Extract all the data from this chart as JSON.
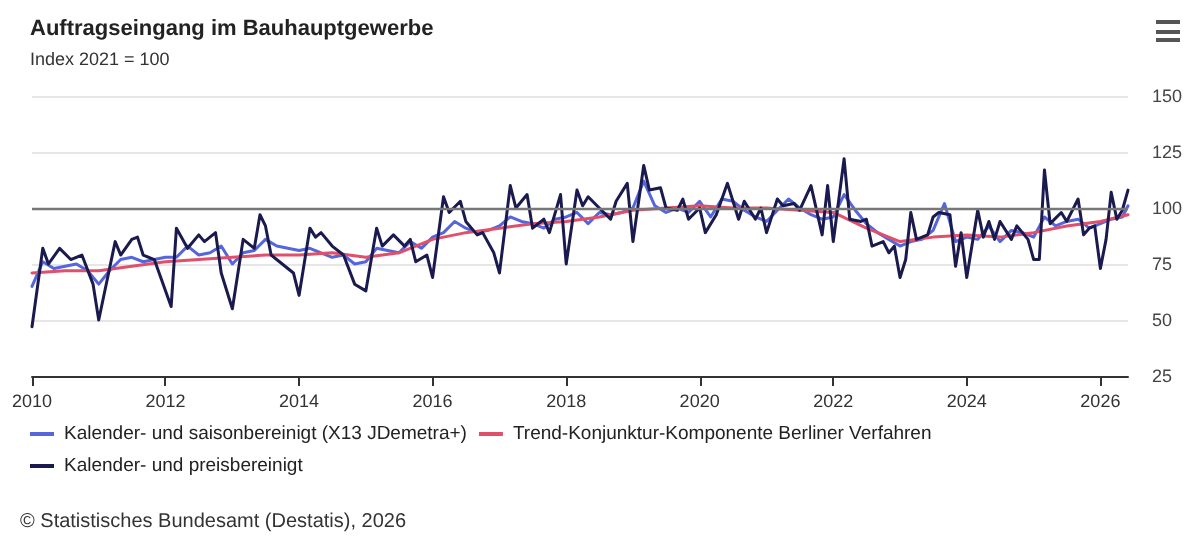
{
  "chart_data": {
    "type": "line",
    "title": "Auftragseingang im Bauhauptgewerbe",
    "subtitle": "Index 2021 = 100",
    "annotations": [
      "© Statistisches Bundesamt (Destatis), 2026"
    ],
    "xlim": [
      "2010-01",
      "2026-06"
    ],
    "xticks": [
      "2010",
      "2012",
      "2014",
      "2016",
      "2018",
      "2020",
      "2022",
      "2024",
      "2026"
    ],
    "ylim": [
      25,
      150
    ],
    "yticks": [
      25,
      50,
      75,
      100,
      125,
      150
    ],
    "grid": "y",
    "legend": "bottom",
    "marker": "none",
    "line_style": "solid",
    "ref_lines": [
      {
        "axis": "y",
        "value": 100,
        "color": "#777777"
      }
    ],
    "series": [
      {
        "name": "Kalender- und saisonbereinigt (X13 JDemetra+)",
        "color": "#5566dd",
        "x": [
          "2010-01",
          "2010-03",
          "2010-05",
          "2010-07",
          "2010-09",
          "2010-11",
          "2011-01",
          "2011-03",
          "2011-05",
          "2011-07",
          "2011-09",
          "2011-11",
          "2012-01",
          "2012-03",
          "2012-05",
          "2012-07",
          "2012-09",
          "2012-11",
          "2013-01",
          "2013-03",
          "2013-05",
          "2013-07",
          "2013-09",
          "2013-11",
          "2014-01",
          "2014-03",
          "2014-05",
          "2014-07",
          "2014-09",
          "2014-11",
          "2015-01",
          "2015-03",
          "2015-05",
          "2015-07",
          "2015-09",
          "2015-11",
          "2016-01",
          "2016-03",
          "2016-05",
          "2016-07",
          "2016-09",
          "2016-11",
          "2017-01",
          "2017-03",
          "2017-05",
          "2017-07",
          "2017-09",
          "2017-11",
          "2018-01",
          "2018-03",
          "2018-05",
          "2018-07",
          "2018-09",
          "2018-11",
          "2019-01",
          "2019-03",
          "2019-05",
          "2019-07",
          "2019-09",
          "2019-11",
          "2020-01",
          "2020-03",
          "2020-05",
          "2020-07",
          "2020-09",
          "2020-11",
          "2021-01",
          "2021-03",
          "2021-05",
          "2021-07",
          "2021-09",
          "2021-11",
          "2022-01",
          "2022-03",
          "2022-05",
          "2022-07",
          "2022-09",
          "2022-11",
          "2023-01",
          "2023-03",
          "2023-05",
          "2023-07",
          "2023-09",
          "2023-11",
          "2024-01",
          "2024-03",
          "2024-05",
          "2024-07",
          "2024-09",
          "2024-11",
          "2025-01",
          "2025-03",
          "2025-05",
          "2025-07",
          "2025-09",
          "2025-11",
          "2026-01",
          "2026-03",
          "2026-05",
          "2026-06"
        ],
        "values": [
          65,
          76,
          73,
          74,
          75,
          72,
          66,
          72,
          77,
          78,
          76,
          77,
          78,
          78,
          83,
          79,
          80,
          83,
          75,
          80,
          81,
          86,
          83,
          82,
          81,
          82,
          80,
          78,
          79,
          75,
          76,
          82,
          81,
          80,
          85,
          82,
          87,
          89,
          94,
          91,
          89,
          90,
          92,
          96,
          94,
          93,
          91,
          95,
          96,
          98,
          93,
          98,
          97,
          98,
          100,
          112,
          101,
          98,
          100,
          98,
          103,
          96,
          104,
          103,
          99,
          96,
          94,
          99,
          104,
          100,
          97,
          95,
          96,
          106,
          99,
          93,
          89,
          86,
          83,
          85,
          86,
          90,
          102,
          85,
          87,
          86,
          92,
          85,
          90,
          89,
          87,
          96,
          92,
          94,
          95,
          91,
          93,
          95,
          96,
          101
        ]
      },
      {
        "name": "Trend-Konjunktur-Komponente Berliner Verfahren",
        "color": "#e0506a",
        "x": [
          "2010-01",
          "2010-07",
          "2011-01",
          "2011-07",
          "2012-01",
          "2012-07",
          "2013-01",
          "2013-07",
          "2014-01",
          "2014-07",
          "2015-01",
          "2015-07",
          "2016-01",
          "2016-07",
          "2017-01",
          "2017-07",
          "2018-01",
          "2018-07",
          "2019-01",
          "2019-07",
          "2020-01",
          "2020-07",
          "2021-01",
          "2021-07",
          "2022-01",
          "2022-07",
          "2023-01",
          "2023-07",
          "2024-01",
          "2024-07",
          "2025-01",
          "2025-07",
          "2026-01",
          "2026-06"
        ],
        "values": [
          71,
          72,
          72,
          74,
          76,
          77,
          78,
          79,
          79,
          80,
          78,
          80,
          86,
          89,
          91,
          93,
          94,
          96,
          99,
          100,
          101,
          100,
          100,
          99,
          98,
          91,
          85,
          87,
          88,
          87,
          89,
          92,
          94,
          97
        ]
      },
      {
        "name": "Kalender- und preisbereinigt",
        "color": "#1a1a4e",
        "x": [
          "2010-01",
          "2010-03",
          "2010-04",
          "2010-06",
          "2010-08",
          "2010-10",
          "2010-12",
          "2011-01",
          "2011-04",
          "2011-05",
          "2011-07",
          "2011-08",
          "2011-09",
          "2011-11",
          "2012-02",
          "2012-03",
          "2012-05",
          "2012-07",
          "2012-08",
          "2012-10",
          "2012-11",
          "2013-01",
          "2013-03",
          "2013-05",
          "2013-06",
          "2013-07",
          "2013-08",
          "2013-10",
          "2013-12",
          "2014-01",
          "2014-03",
          "2014-04",
          "2014-05",
          "2014-07",
          "2014-09",
          "2014-11",
          "2015-01",
          "2015-03",
          "2015-04",
          "2015-06",
          "2015-08",
          "2015-09",
          "2015-10",
          "2015-12",
          "2016-01",
          "2016-03",
          "2016-04",
          "2016-06",
          "2016-07",
          "2016-09",
          "2016-10",
          "2016-12",
          "2017-01",
          "2017-03",
          "2017-04",
          "2017-06",
          "2017-07",
          "2017-09",
          "2017-10",
          "2017-12",
          "2018-01",
          "2018-03",
          "2018-04",
          "2018-05",
          "2018-07",
          "2018-09",
          "2018-10",
          "2018-12",
          "2019-01",
          "2019-03",
          "2019-04",
          "2019-06",
          "2019-07",
          "2019-09",
          "2019-10",
          "2019-11",
          "2020-01",
          "2020-02",
          "2020-04",
          "2020-06",
          "2020-08",
          "2020-09",
          "2020-11",
          "2020-12",
          "2021-01",
          "2021-03",
          "2021-04",
          "2021-06",
          "2021-07",
          "2021-09",
          "2021-11",
          "2021-12",
          "2022-01",
          "2022-03",
          "2022-04",
          "2022-06",
          "2022-07",
          "2022-08",
          "2022-10",
          "2022-11",
          "2022-12",
          "2023-01",
          "2023-02",
          "2023-03",
          "2023-04",
          "2023-06",
          "2023-07",
          "2023-08",
          "2023-10",
          "2023-11",
          "2023-12",
          "2024-01",
          "2024-03",
          "2024-04",
          "2024-05",
          "2024-06",
          "2024-07",
          "2024-09",
          "2024-10",
          "2024-12",
          "2025-01",
          "2025-02",
          "2025-03",
          "2025-04",
          "2025-06",
          "2025-07",
          "2025-09",
          "2025-10",
          "2025-11",
          "2025-12",
          "2026-01",
          "2026-02",
          "2026-03",
          "2026-04",
          "2026-05",
          "2026-06"
        ],
        "values": [
          47,
          82,
          75,
          82,
          77,
          79,
          66,
          50,
          85,
          79,
          86,
          87,
          79,
          77,
          56,
          91,
          82,
          88,
          85,
          89,
          71,
          55,
          86,
          82,
          97,
          92,
          79,
          75,
          71,
          61,
          91,
          87,
          89,
          83,
          79,
          66,
          63,
          91,
          83,
          88,
          83,
          86,
          76,
          79,
          69,
          105,
          98,
          103,
          94,
          88,
          89,
          80,
          71,
          110,
          100,
          106,
          91,
          95,
          89,
          106,
          75,
          108,
          101,
          105,
          100,
          95,
          103,
          111,
          85,
          119,
          108,
          109,
          100,
          99,
          104,
          95,
          100,
          89,
          97,
          111,
          95,
          103,
          95,
          100,
          89,
          104,
          101,
          102,
          99,
          110,
          88,
          110,
          85,
          122,
          95,
          94,
          95,
          83,
          85,
          80,
          83,
          69,
          77,
          98,
          86,
          88,
          96,
          98,
          97,
          74,
          89,
          69,
          99,
          87,
          94,
          86,
          94,
          86,
          92,
          86,
          77,
          77,
          117,
          93,
          98,
          94,
          104,
          88,
          91,
          92,
          73,
          86,
          107,
          95,
          99,
          108
        ]
      }
    ]
  }
}
